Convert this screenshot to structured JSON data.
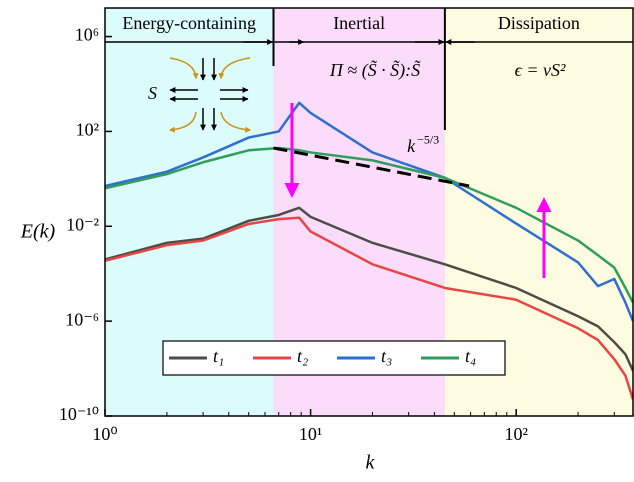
{
  "chart_data": {
    "type": "line",
    "x_label": "k",
    "y_label": "E(k)",
    "log_x": true,
    "log_y": true,
    "xlim": [
      1,
      370
    ],
    "ylim": [
      1e-10,
      16000000
    ],
    "xticks": [
      {
        "value": 1,
        "label": "10⁰"
      },
      {
        "value": 10,
        "label": "10¹"
      },
      {
        "value": 100,
        "label": "10²"
      }
    ],
    "yticks": [
      {
        "value": 1e-10,
        "label": "10⁻¹⁰"
      },
      {
        "value": 1e-06,
        "label": "10⁻⁶"
      },
      {
        "value": 0.01,
        "label": "10⁻²"
      },
      {
        "value": 100,
        "label": "10²"
      },
      {
        "value": 1000000,
        "label": "10⁶"
      }
    ],
    "x": [
      1,
      2,
      3,
      5,
      7,
      8.8,
      10,
      20,
      45,
      100,
      200,
      250,
      300,
      340,
      370
    ],
    "series": [
      {
        "name": "t₁",
        "color": "#4d4d45",
        "values": [
          0.0004,
          0.002,
          0.003,
          0.017,
          0.03,
          0.06,
          0.025,
          0.002,
          0.00025,
          2.5e-05,
          1.6e-06,
          6e-07,
          1.3e-07,
          4e-08,
          8e-09
        ]
      },
      {
        "name": "t₂",
        "color": "#e84545",
        "values": [
          0.00035,
          0.0016,
          0.0025,
          0.0125,
          0.02,
          0.023,
          0.006,
          0.00025,
          2.5e-05,
          8e-06,
          5e-07,
          1.6e-07,
          2.5e-08,
          5e-09,
          5e-10
        ]
      },
      {
        "name": "t₃",
        "color": "#2f6fd0",
        "values": [
          0.5,
          2,
          8,
          55,
          100,
          1600,
          600,
          13,
          1.1,
          0.013,
          0.0003,
          3e-05,
          6e-05,
          6e-06,
          1e-06
        ]
      },
      {
        "name": "t₄",
        "color": "#2e9e5a",
        "values": [
          0.4,
          1.6,
          5,
          16,
          20,
          16,
          13,
          6,
          1.1,
          0.06,
          0.0025,
          0.0006,
          0.00018,
          2.5e-05,
          6e-06
        ]
      }
    ],
    "regions": [
      {
        "name": "Energy-containing",
        "from": 1,
        "to": 6.6,
        "color": "#dcfbfb"
      },
      {
        "name": "Inertial",
        "from": 6.6,
        "to": 45,
        "color": "#fbdcfb"
      },
      {
        "name": "Dissipation",
        "from": 45,
        "to": 370,
        "color": "#fdfbe0"
      }
    ],
    "region_equations": {
      "inertial": "Π ≈ (S̃ · S̃):S̃",
      "dissipation": "ϵ = νS²"
    },
    "inset_label": "S",
    "slope_line": {
      "base": "k",
      "exponent": "−5/3",
      "x": [
        6.6,
        59
      ],
      "y": [
        20,
        0.5
      ]
    },
    "legend": "lower center"
  }
}
